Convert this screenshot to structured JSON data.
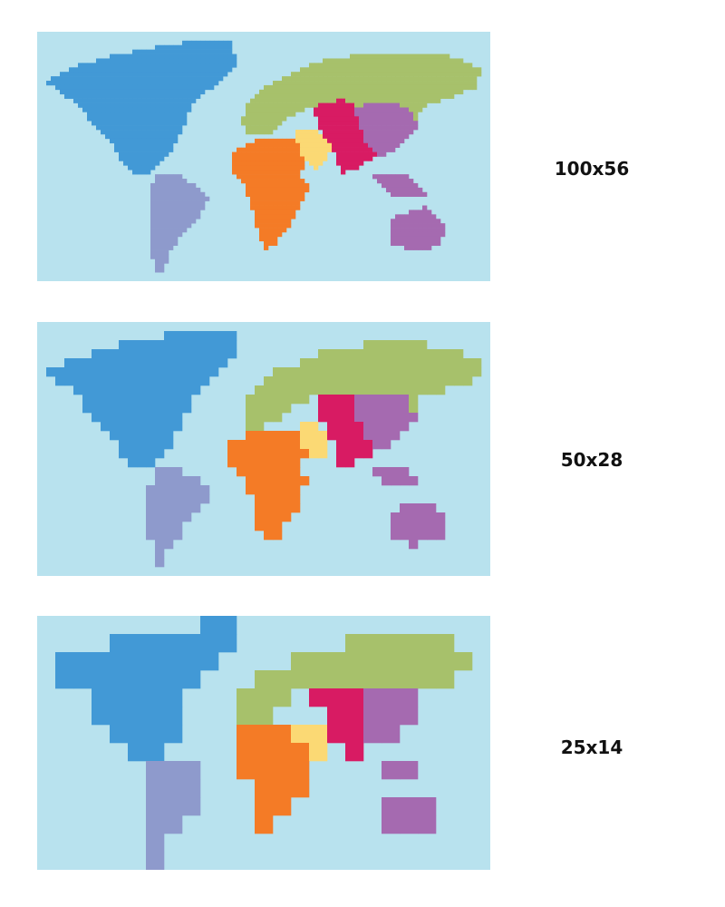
{
  "colors": {
    "ocean": "#b8e2ee",
    "north_america": "#4299d6",
    "south_america": "#8e9acc",
    "europe_north_asia": "#a7c16b",
    "africa": "#f47b26",
    "middle_east": "#fbd974",
    "south_asia": "#d81b63",
    "east_asia_oceania": "#a56ab0"
  },
  "maps": [
    {
      "label": "100x56",
      "cols": 100,
      "rows": 56
    },
    {
      "label": "50x28",
      "cols": 50,
      "rows": 28
    },
    {
      "label": "25x14",
      "cols": 25,
      "rows": 14
    }
  ]
}
